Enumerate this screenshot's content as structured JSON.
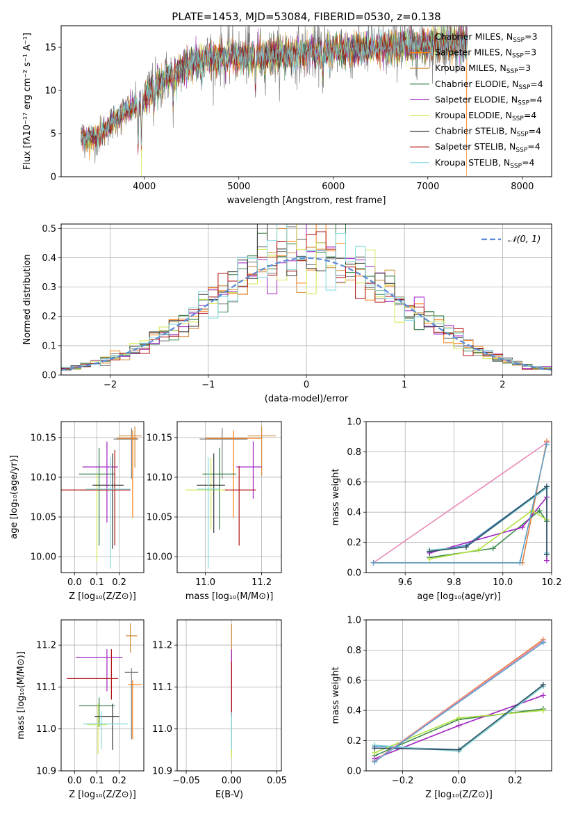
{
  "colors": {
    "Chabrier MILES": "#7f7f7f",
    "Salpeter MILES": "#ff7f0e",
    "Kroupa MILES": "#d08a3a",
    "Chabrier ELODIE": "#2f7f3f",
    "Salpeter ELODIE": "#a020c0",
    "Kroupa ELODIE": "#d4e64c",
    "Chabrier STELIB": "#333333",
    "Salpeter STELIB": "#b01010",
    "Kroupa STELIB": "#80d8e0",
    "normal": "#5b8ad8",
    "weights": [
      "#4f87c8",
      "#e8803a",
      "#3a8a4a",
      "#a020c0",
      "#b0e040",
      "#7ecfd0",
      "#2f5060",
      "#e88ab8",
      "#5aa0c8"
    ]
  },
  "chart_data": [
    {
      "type": "line",
      "title": "PLATE=1453, MJD=53084, FIBERID=0530, z=0.138",
      "xlabel": "wavelength [Angstrom, rest frame]",
      "ylabel": "Flux [fλ10⁻¹⁷ erg cm⁻² s⁻¹ A⁻¹]",
      "xlim": [
        3120,
        8310
      ],
      "ylim": [
        0,
        17.5
      ],
      "xticks": [
        4000,
        5000,
        6000,
        7000,
        8000
      ],
      "yticks": [
        0,
        5,
        10,
        15
      ],
      "grid": false,
      "legend_position": "right",
      "legend": [
        {
          "main": "Chabrier MILES, N",
          "sub": "SSP",
          "tail": "=3",
          "color": "#7f7f7f"
        },
        {
          "main": "Salpeter MILES, N",
          "sub": "SSP",
          "tail": "=3",
          "color": "#ff7f0e"
        },
        {
          "main": "Kroupa MILES, N",
          "sub": "SSP",
          "tail": "=3",
          "color": "#d08a3a"
        },
        {
          "main": "Chabrier ELODIE, N",
          "sub": "SSP",
          "tail": "=4",
          "color": "#2f7f3f"
        },
        {
          "main": "Salpeter ELODIE, N",
          "sub": "SSP",
          "tail": "=4",
          "color": "#a020c0"
        },
        {
          "main": "Kroupa ELODIE, N",
          "sub": "SSP",
          "tail": "=4",
          "color": "#d4e64c"
        },
        {
          "main": "Chabrier STELIB, N",
          "sub": "SSP",
          "tail": "=4",
          "color": "#333333"
        },
        {
          "main": "Salpeter STELIB, N",
          "sub": "SSP",
          "tail": "=4",
          "color": "#b01010"
        },
        {
          "main": "Kroupa STELIB, N",
          "sub": "SSP",
          "tail": "=4",
          "color": "#80d8e0"
        }
      ],
      "continuum": {
        "x": [
          3320,
          3400,
          3500,
          3650,
          3800,
          3950,
          4000,
          4100,
          4200,
          4300,
          4500,
          4700,
          5000,
          5200,
          5500,
          5800,
          6000,
          6300,
          6500,
          6800,
          7000,
          7200,
          7400
        ],
        "y": [
          4.6,
          4.4,
          4.5,
          6.2,
          7.6,
          8.5,
          8.9,
          10.3,
          11.2,
          12.0,
          13.2,
          13.8,
          14.0,
          14.0,
          14.2,
          14.4,
          14.6,
          14.8,
          15.0,
          15.2,
          15.3,
          15.4,
          15.5
        ]
      },
      "data_range": [
        3330,
        7420
      ],
      "absorption_lines": [
        {
          "x": 3934,
          "depth": 5.0
        },
        {
          "x": 3969,
          "depth": 5.0
        },
        {
          "x": 4102,
          "depth": 2.5
        },
        {
          "x": 4304,
          "depth": 3.0
        },
        {
          "x": 4341,
          "depth": 2.0
        },
        {
          "x": 4861,
          "depth": 1.2
        },
        {
          "x": 5175,
          "depth": 3.5
        },
        {
          "x": 5270,
          "depth": 1.2
        },
        {
          "x": 5890,
          "depth": 3.0
        },
        {
          "x": 6563,
          "depth": 1.0
        }
      ],
      "dropouts": [
        {
          "series": "Salpeter MILES",
          "x": 3540
        },
        {
          "series": "Kroupa ELODIE",
          "x": 3970
        },
        {
          "series": "Kroupa MILES",
          "x": 6780
        },
        {
          "series": "Salpeter MILES",
          "x": 7410
        }
      ]
    },
    {
      "type": "line",
      "title": "",
      "xlabel": "(data-model)/error",
      "ylabel": "Normed distribution",
      "xlim": [
        -2.5,
        2.5
      ],
      "ylim": [
        0,
        0.515
      ],
      "xticks": [
        -2,
        -1,
        0,
        1,
        2
      ],
      "yticks": [
        0.0,
        0.1,
        0.2,
        0.3,
        0.4,
        0.5
      ],
      "grid": true,
      "legend_position": "top-right",
      "legend": [
        {
          "label": "𝒩(0, 1)",
          "color": "#5b8ad8",
          "style": "dashed"
        }
      ],
      "bin_width": 0.1
    },
    {
      "type": "scatter",
      "title": "",
      "xlabel": "Z [log₁₀(Z/Z⊙)]",
      "ylabel": "age  [log₁₀(age/yr)]",
      "xlim": [
        -0.06,
        0.31
      ],
      "ylim": [
        9.98,
        10.17
      ],
      "xticks": [
        0.0,
        0.1,
        0.2
      ],
      "yticks": [
        10.0,
        10.05,
        10.1,
        10.15
      ],
      "grid": true,
      "points": [
        {
          "series": "Chabrier MILES",
          "x": 0.255,
          "y": 10.148,
          "xerr": [
            0.08,
            0.03
          ],
          "yerr": [
            0.05,
            0.014
          ]
        },
        {
          "series": "Salpeter MILES",
          "x": 0.26,
          "y": 10.149,
          "xerr": [
            0.07,
            0.02
          ],
          "yerr": [
            0.1,
            0.01
          ]
        },
        {
          "series": "Kroupa MILES",
          "x": 0.27,
          "y": 10.152,
          "xerr": [
            0.07,
            0.03
          ],
          "yerr": [
            0.04,
            0.012
          ]
        },
        {
          "series": "Chabrier ELODIE",
          "x": 0.11,
          "y": 10.104,
          "xerr": [
            0.09,
            0.07
          ],
          "yerr": [
            0.09,
            0.033
          ]
        },
        {
          "series": "Salpeter ELODIE",
          "x": 0.145,
          "y": 10.113,
          "xerr": [
            0.11,
            0.05
          ],
          "yerr": [
            0.07,
            0.032
          ]
        },
        {
          "series": "Kroupa ELODIE",
          "x": 0.1,
          "y": 10.084,
          "xerr": [
            0.07,
            0.05
          ],
          "yerr": [
            0.09,
            0.02
          ]
        },
        {
          "series": "Chabrier STELIB",
          "x": 0.17,
          "y": 10.09,
          "xerr": [
            0.09,
            0.05
          ],
          "yerr": [
            0.08,
            0.04
          ]
        },
        {
          "series": "Salpeter STELIB",
          "x": 0.18,
          "y": 10.084,
          "xerr": [
            0.24,
            0.07
          ],
          "yerr": [
            0.07,
            0.05
          ]
        },
        {
          "series": "Kroupa STELIB",
          "x": 0.16,
          "y": 10.085,
          "xerr": [
            0.11,
            0.09
          ],
          "yerr": [
            0.1,
            0.04
          ]
        }
      ]
    },
    {
      "type": "scatter",
      "title": "",
      "xlabel": "mass [log₁₀(M/M⊙)]",
      "ylabel": "",
      "xlim": [
        10.9,
        11.27
      ],
      "ylim": [
        9.98,
        10.17
      ],
      "xticks": [
        11.0,
        11.2
      ],
      "yticks": [
        10.0,
        10.05,
        10.1,
        10.15
      ],
      "grid": true,
      "points": [
        {
          "series": "Chabrier MILES",
          "x": 11.06,
          "y": 10.148,
          "xerr": [
            0.08,
            0.09
          ],
          "yerr": [
            0.05,
            0.014
          ]
        },
        {
          "series": "Salpeter MILES",
          "x": 11.1,
          "y": 10.149,
          "xerr": [
            0.1,
            0.1
          ],
          "yerr": [
            0.1,
            0.01
          ]
        },
        {
          "series": "Kroupa MILES",
          "x": 11.2,
          "y": 10.152,
          "xerr": [
            0.05,
            0.05
          ],
          "yerr": [
            0.05,
            0.012
          ]
        },
        {
          "series": "Chabrier ELODIE",
          "x": 11.05,
          "y": 10.104,
          "xerr": [
            0.06,
            0.06
          ],
          "yerr": [
            0.07,
            0.033
          ]
        },
        {
          "series": "Salpeter ELODIE",
          "x": 11.17,
          "y": 10.113,
          "xerr": [
            0.06,
            0.03
          ],
          "yerr": [
            0.04,
            0.032
          ]
        },
        {
          "series": "Kroupa ELODIE",
          "x": 11.02,
          "y": 10.084,
          "xerr": [
            0.09,
            0.06
          ],
          "yerr": [
            0.05,
            0.04
          ]
        },
        {
          "series": "Chabrier STELIB",
          "x": 11.03,
          "y": 10.09,
          "xerr": [
            0.06,
            0.04
          ],
          "yerr": [
            0.06,
            0.04
          ]
        },
        {
          "series": "Salpeter STELIB",
          "x": 11.12,
          "y": 10.084,
          "xerr": [
            0.05,
            0.06
          ],
          "yerr": [
            0.07,
            0.03
          ]
        },
        {
          "series": "Kroupa STELIB",
          "x": 11.01,
          "y": 10.085,
          "xerr": [
            0.04,
            0.04
          ],
          "yerr": [
            0.1,
            0.04
          ]
        }
      ]
    },
    {
      "type": "line",
      "title": "",
      "xlabel": "age  [log₁₀(age/yr)]",
      "ylabel": "mass weight",
      "xlim": [
        9.44,
        10.2
      ],
      "ylim": [
        0.0,
        1.0
      ],
      "xticks": [
        9.6,
        9.8,
        10.0,
        10.2
      ],
      "yticks": [
        0.0,
        0.2,
        0.4,
        0.6,
        0.8,
        1.0
      ],
      "grid": true,
      "series": [
        {
          "x": [
            9.7,
            9.85,
            10.18,
            10.18
          ],
          "y": [
            0.14,
            0.18,
            0.57,
            0.12
          ]
        },
        {
          "x": [
            9.47,
            10.08,
            10.18
          ],
          "y": [
            0.065,
            0.065,
            0.87
          ]
        },
        {
          "x": [
            9.7,
            9.96,
            10.15,
            10.18
          ],
          "y": [
            0.1,
            0.16,
            0.41,
            0.34
          ]
        },
        {
          "x": [
            9.7,
            10.08,
            10.18,
            10.18
          ],
          "y": [
            0.13,
            0.3,
            0.5,
            0.08
          ]
        },
        {
          "x": [
            9.7,
            9.9,
            10.12,
            10.18
          ],
          "y": [
            0.09,
            0.15,
            0.41,
            0.35
          ]
        },
        {
          "x": [
            9.7,
            9.85,
            10.18,
            10.18
          ],
          "y": [
            0.15,
            0.17,
            0.56,
            0.13
          ]
        },
        {
          "x": [
            9.7,
            9.85,
            10.18,
            10.18
          ],
          "y": [
            0.14,
            0.17,
            0.57,
            0.12
          ]
        },
        {
          "x": [
            9.47,
            10.18
          ],
          "y": [
            0.065,
            0.86
          ]
        },
        {
          "x": [
            9.47,
            10.07,
            10.18
          ],
          "y": [
            0.065,
            0.065,
            0.85
          ]
        }
      ]
    },
    {
      "type": "scatter",
      "title": "",
      "xlabel": "Z [log₁₀(Z/Z⊙)]",
      "ylabel": "mass [log₁₀(M/M⊙)]",
      "xlim": [
        -0.06,
        0.31
      ],
      "ylim": [
        10.9,
        11.26
      ],
      "xticks": [
        0.0,
        0.1,
        0.2
      ],
      "yticks": [
        10.9,
        11.0,
        11.1,
        11.2
      ],
      "grid": true,
      "points": [
        {
          "series": "Chabrier MILES",
          "x": 0.255,
          "y": 11.135,
          "xerr": [
            0.03,
            0.03
          ],
          "yerr": [
            0.16,
            0.01
          ]
        },
        {
          "series": "Salpeter MILES",
          "x": 0.26,
          "y": 11.106,
          "xerr": [
            0.02,
            0.04
          ],
          "yerr": [
            0.13,
            0.01
          ]
        },
        {
          "series": "Kroupa MILES",
          "x": 0.25,
          "y": 11.222,
          "xerr": [
            0.02,
            0.03
          ],
          "yerr": [
            0.04,
            0.03
          ]
        },
        {
          "series": "Chabrier ELODIE",
          "x": 0.11,
          "y": 11.055,
          "xerr": [
            0.09,
            0.07
          ],
          "yerr": [
            0.05,
            0.02
          ]
        },
        {
          "series": "Salpeter ELODIE",
          "x": 0.145,
          "y": 11.17,
          "xerr": [
            0.14,
            0.07
          ],
          "yerr": [
            0.08,
            0.02
          ]
        },
        {
          "series": "Kroupa ELODIE",
          "x": 0.105,
          "y": 11.01,
          "xerr": [
            0.05,
            0.04
          ],
          "yerr": [
            0.07,
            0.05
          ]
        },
        {
          "series": "Chabrier STELIB",
          "x": 0.17,
          "y": 11.03,
          "xerr": [
            0.08,
            0.03
          ],
          "yerr": [
            0.08,
            0.03
          ]
        },
        {
          "series": "Salpeter STELIB",
          "x": 0.165,
          "y": 11.12,
          "xerr": [
            0.2,
            0.03
          ],
          "yerr": [
            0.05,
            0.07
          ]
        },
        {
          "series": "Kroupa STELIB",
          "x": 0.12,
          "y": 11.012,
          "xerr": [
            0.08,
            0.12
          ],
          "yerr": [
            0.06,
            0.03
          ]
        }
      ]
    },
    {
      "type": "scatter",
      "title": "",
      "xlabel": "E(B-V)",
      "ylabel": "",
      "xlim": [
        -0.06,
        0.055
      ],
      "ylim": [
        10.9,
        11.26
      ],
      "xticks": [
        -0.05,
        0.0,
        0.05
      ],
      "yticks": [
        10.9,
        11.0,
        11.1,
        11.2
      ],
      "grid": true,
      "points": [
        {
          "series": "Kroupa MILES",
          "x": 0.0,
          "y": 11.1,
          "xerr": [
            0.0,
            0.0
          ],
          "yerr": [
            0.16,
            0.15
          ]
        },
        {
          "series": "Salpeter ELODIE",
          "x": 0.0,
          "y": 11.08,
          "xerr": [
            0.0,
            0.0
          ],
          "yerr": [
            0.12,
            0.11
          ]
        },
        {
          "series": "Salpeter STELIB",
          "x": 0.0,
          "y": 11.08,
          "xerr": [
            0.0,
            0.0
          ],
          "yerr": [
            0.05,
            0.08
          ]
        },
        {
          "series": "Kroupa ELODIE",
          "x": 0.0,
          "y": 11.0,
          "xerr": [
            0.0,
            0.0
          ],
          "yerr": [
            0.07,
            0.03
          ]
        },
        {
          "series": "Kroupa STELIB",
          "x": 0.0,
          "y": 11.01,
          "xerr": [
            0.0,
            0.0
          ],
          "yerr": [
            0.06,
            0.03
          ]
        }
      ]
    },
    {
      "type": "line",
      "title": "",
      "xlabel": "Z [log₁₀(Z/Z⊙)]",
      "ylabel": "mass weight",
      "xlim": [
        -0.33,
        0.33
      ],
      "ylim": [
        0.0,
        1.0
      ],
      "xticks": [
        -0.2,
        0.0,
        0.2
      ],
      "yticks": [
        0.0,
        0.2,
        0.4,
        0.6,
        0.8,
        1.0
      ],
      "grid": true,
      "series": [
        {
          "x": [
            -0.3,
            0.0,
            0.3
          ],
          "y": [
            0.16,
            0.14,
            0.57
          ]
        },
        {
          "x": [
            -0.3,
            0.3
          ],
          "y": [
            0.065,
            0.87
          ]
        },
        {
          "x": [
            -0.3,
            0.0,
            0.3
          ],
          "y": [
            0.1,
            0.34,
            0.41
          ]
        },
        {
          "x": [
            -0.3,
            0.0,
            0.3
          ],
          "y": [
            0.08,
            0.3,
            0.5
          ]
        },
        {
          "x": [
            -0.3,
            0.0,
            0.3
          ],
          "y": [
            0.12,
            0.35,
            0.4
          ]
        },
        {
          "x": [
            -0.3,
            0.0,
            0.3
          ],
          "y": [
            0.17,
            0.13,
            0.56
          ]
        },
        {
          "x": [
            -0.3,
            0.0,
            0.3
          ],
          "y": [
            0.15,
            0.14,
            0.57
          ]
        },
        {
          "x": [
            -0.3,
            0.3
          ],
          "y": [
            0.065,
            0.86
          ]
        },
        {
          "x": [
            -0.3,
            0.3
          ],
          "y": [
            0.06,
            0.85
          ]
        }
      ]
    }
  ]
}
